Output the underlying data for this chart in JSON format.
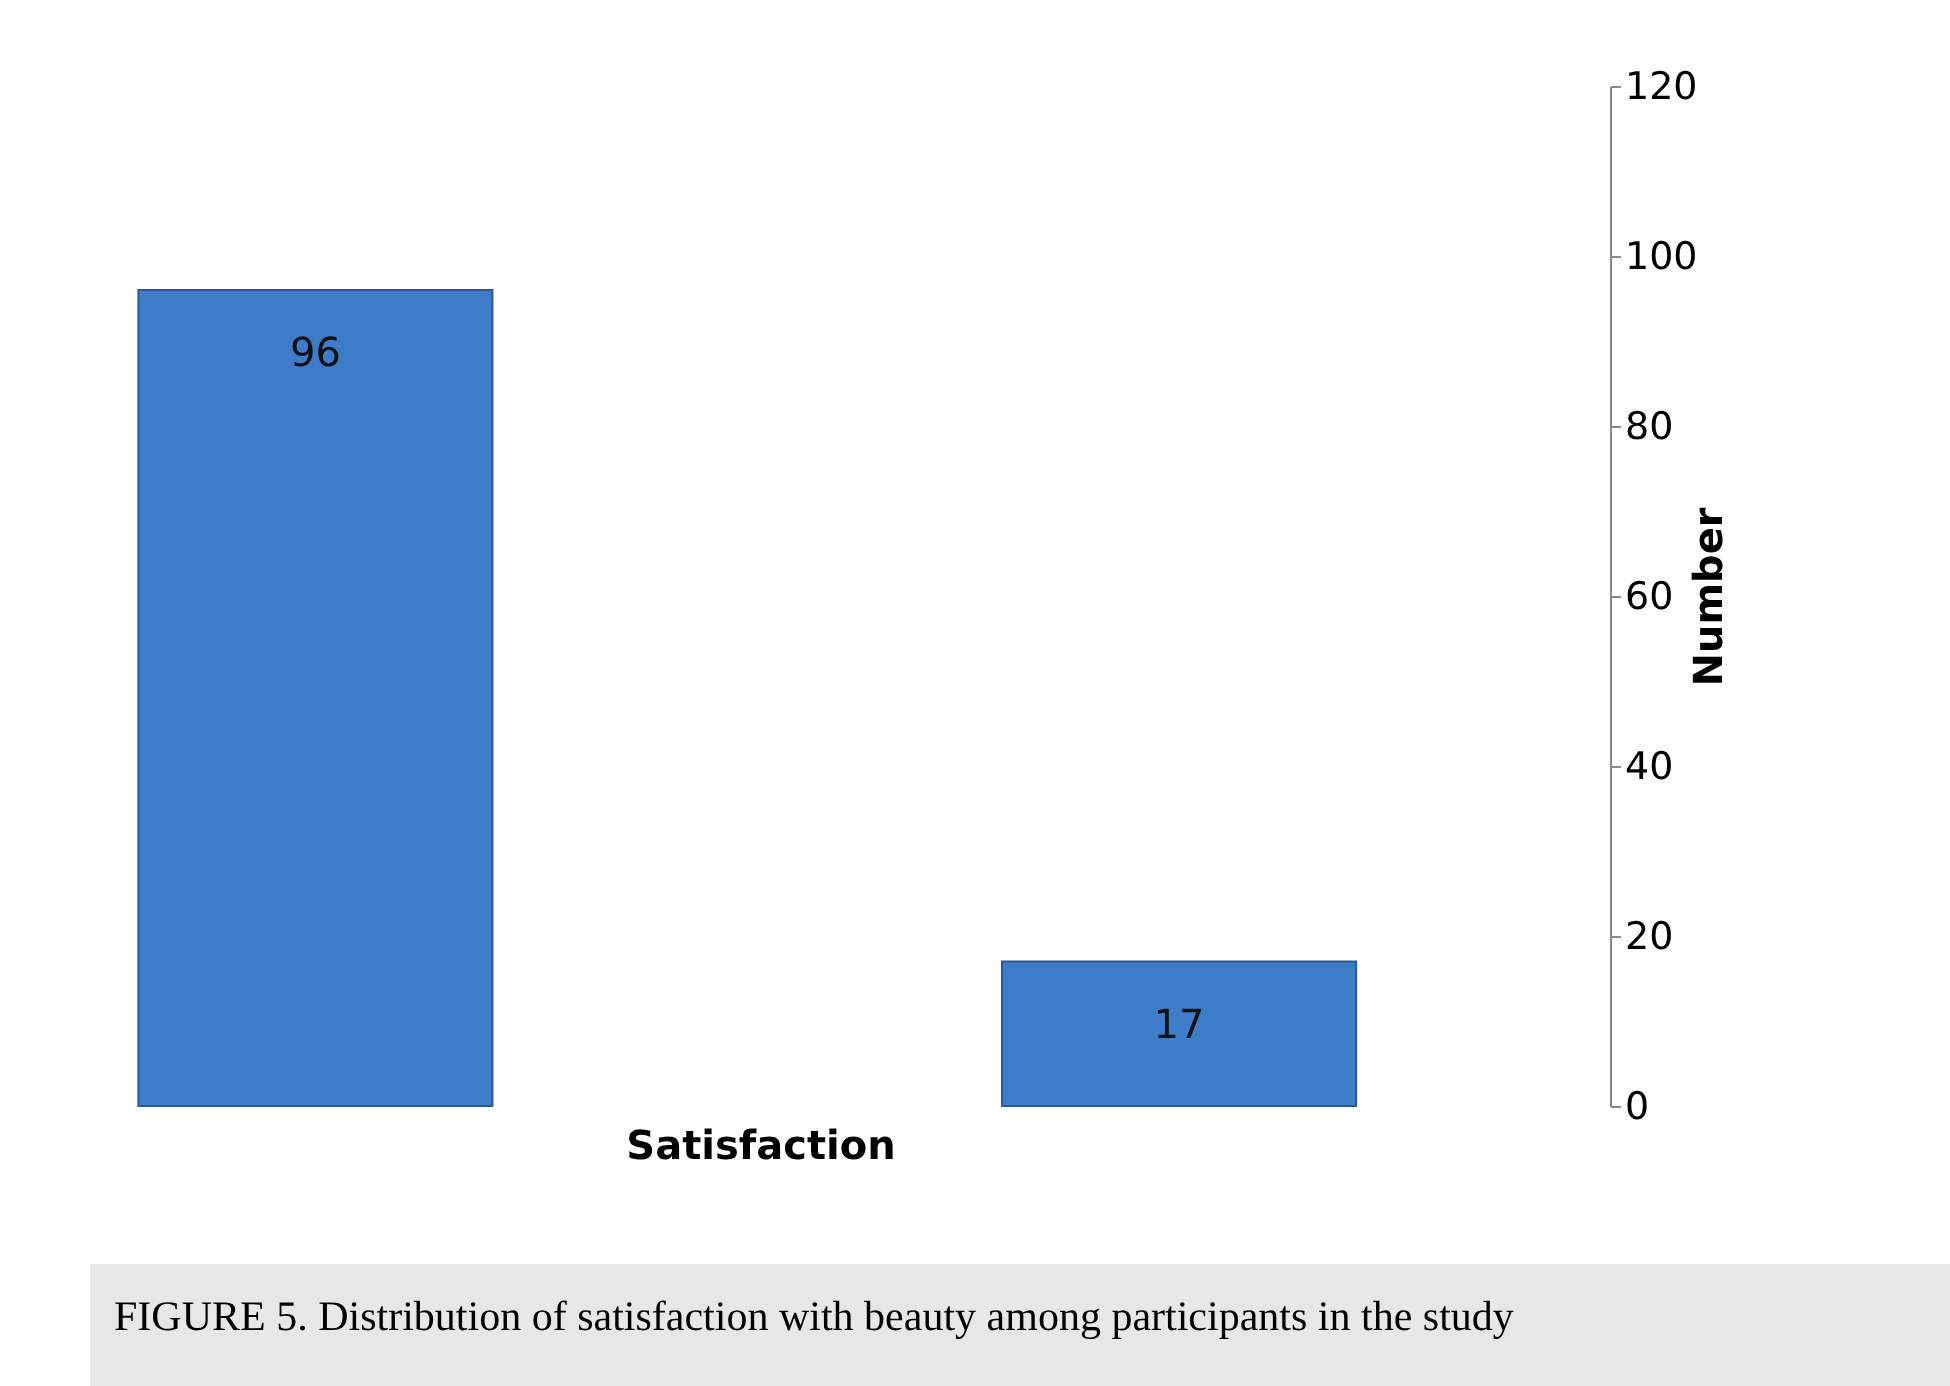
{
  "chart_data": {
    "type": "bar",
    "categories": [
      null,
      null
    ],
    "values": [
      96,
      17
    ],
    "color": "#3d7cc9",
    "xlabel": "Satisfaction",
    "ylabel": "Number",
    "ylim": [
      0,
      120
    ],
    "yticks": [
      0,
      20,
      40,
      60,
      80,
      100,
      120
    ],
    "data_labels": true,
    "grid": false,
    "annotations": [
      "FIGURE 5. Distribution of satisfaction with beauty among participants in the study"
    ]
  }
}
